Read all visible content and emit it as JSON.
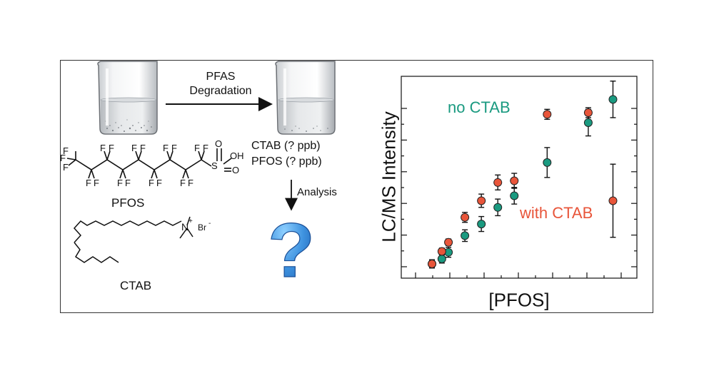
{
  "process": {
    "arrow_label_line1": "PFAS",
    "arrow_label_line2": "Degradation",
    "unknown_line1": "CTAB (? ppb)",
    "unknown_line2": "PFOS (? ppb)",
    "analysis_label": "Analysis",
    "question_mark": "?"
  },
  "molecules": {
    "pfos_name": "PFOS",
    "ctab_name": "CTAB",
    "atom_F": "F",
    "atom_S": "S",
    "atom_O": "O",
    "atom_OH": "OH",
    "atom_N": "N",
    "charge_plus": "+",
    "atom_Br": "Br",
    "charge_minus": "-"
  },
  "chart_data": {
    "type": "scatter",
    "xlabel": "[PFOS]",
    "ylabel": "LC/MS Intensity",
    "xlim": [
      0,
      12.5
    ],
    "ylim": [
      0,
      10
    ],
    "series": [
      {
        "name": "no CTAB",
        "color": "#1a9a80",
        "points": [
          {
            "x": 1.0,
            "y": 0.0,
            "err": 0.25
          },
          {
            "x": 1.6,
            "y": 0.3,
            "err": 0.25
          },
          {
            "x": 2.0,
            "y": 0.7,
            "err": 0.3
          },
          {
            "x": 3.0,
            "y": 1.7,
            "err": 0.35
          },
          {
            "x": 4.0,
            "y": 2.4,
            "err": 0.45
          },
          {
            "x": 5.0,
            "y": 3.4,
            "err": 0.5
          },
          {
            "x": 6.0,
            "y": 4.1,
            "err": 0.5
          },
          {
            "x": 8.0,
            "y": 6.1,
            "err": 0.9
          },
          {
            "x": 10.5,
            "y": 8.5,
            "err": 0.8
          },
          {
            "x": 12.0,
            "y": 9.9,
            "err": 1.1
          }
        ]
      },
      {
        "name": "with CTAB",
        "color": "#e8553a",
        "points": [
          {
            "x": 1.0,
            "y": 0.0,
            "err": 0.2
          },
          {
            "x": 1.6,
            "y": 0.75,
            "err": 0.2
          },
          {
            "x": 2.0,
            "y": 1.3,
            "err": 0.2
          },
          {
            "x": 3.0,
            "y": 2.8,
            "err": 0.3
          },
          {
            "x": 4.0,
            "y": 3.8,
            "err": 0.4
          },
          {
            "x": 5.0,
            "y": 4.9,
            "err": 0.45
          },
          {
            "x": 6.0,
            "y": 5.0,
            "err": 0.45
          },
          {
            "x": 8.0,
            "y": 9.0,
            "err": 0.3
          },
          {
            "x": 10.5,
            "y": 9.1,
            "err": 0.3
          },
          {
            "x": 12.0,
            "y": 3.8,
            "err": 2.2
          }
        ]
      }
    ]
  }
}
